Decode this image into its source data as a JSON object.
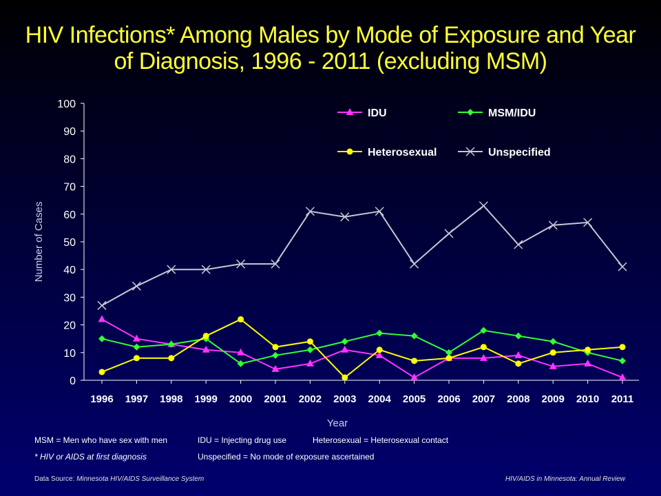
{
  "title": {
    "line1": "HIV Infections* Among Males by Mode of Exposure and Year",
    "line2": "of Diagnosis, 1996 - 2011 (excluding MSM)"
  },
  "chart_data": {
    "type": "line",
    "xlabel": "Year",
    "ylabel": "Number of Cases",
    "ylim": [
      0,
      100
    ],
    "yticks": [
      0,
      10,
      20,
      30,
      40,
      50,
      60,
      70,
      80,
      90,
      100
    ],
    "categories": [
      "1996",
      "1997",
      "1998",
      "1999",
      "2000",
      "2001",
      "2002",
      "2003",
      "2004",
      "2005",
      "2006",
      "2007",
      "2008",
      "2009",
      "2010",
      "2011"
    ],
    "grid": false,
    "legend_position": "top-right",
    "series": [
      {
        "name": "IDU",
        "color": "#ff33ff",
        "marker": "triangle",
        "values": [
          22,
          15,
          13,
          11,
          10,
          4,
          6,
          11,
          9,
          1,
          8,
          8,
          9,
          5,
          6,
          1
        ]
      },
      {
        "name": "MSM/IDU",
        "color": "#33ff33",
        "marker": "diamond",
        "values": [
          15,
          12,
          13,
          15,
          6,
          9,
          11,
          14,
          17,
          16,
          10,
          18,
          16,
          14,
          10,
          7
        ]
      },
      {
        "name": "Heterosexual",
        "color": "#ffff00",
        "marker": "circle",
        "values": [
          3,
          8,
          8,
          16,
          22,
          12,
          14,
          1,
          11,
          7,
          8,
          12,
          6,
          10,
          11,
          12
        ]
      },
      {
        "name": "Unspecified",
        "color": "#c8c8d8",
        "marker": "x",
        "values": [
          27,
          34,
          40,
          40,
          42,
          42,
          61,
          59,
          61,
          42,
          53,
          63,
          49,
          56,
          57,
          41
        ]
      }
    ]
  },
  "notes": {
    "msm": "MSM = Men who have sex with men",
    "idu": "IDU = Injecting drug use",
    "hetero": "Heterosexual = Heterosexual contact",
    "asterisk": "* HIV or AIDS at first diagnosis",
    "unspecified": "Unspecified = No mode of exposure ascertained"
  },
  "footer": {
    "source_label": "Data Source: ",
    "source_value": "Minnesota HIV/AIDS Surveillance System",
    "right": "HIV/AIDS in Minnesota: Annual Review"
  }
}
